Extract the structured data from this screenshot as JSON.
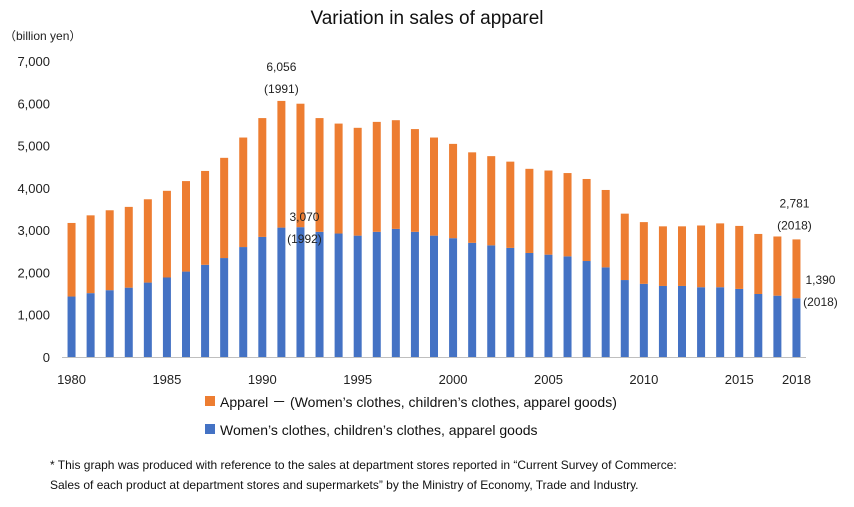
{
  "chart_data": {
    "type": "bar",
    "stacked": true,
    "title": "Variation in sales of apparel",
    "unit_label": "（billion yen）",
    "ylim": [
      0,
      7000
    ],
    "yticks": [
      "0",
      "1,000",
      "2,000",
      "3,000",
      "4,000",
      "5,000",
      "6,000",
      "7,000"
    ],
    "xtick_labels": [
      "1980",
      "1985",
      "1990",
      "1995",
      "2000",
      "2005",
      "2010",
      "2015",
      "2018"
    ],
    "categories": [
      1980,
      1981,
      1982,
      1983,
      1984,
      1985,
      1986,
      1987,
      1988,
      1989,
      1990,
      1991,
      1992,
      1993,
      1994,
      1995,
      1996,
      1997,
      1998,
      1999,
      2000,
      2001,
      2002,
      2003,
      2004,
      2005,
      2006,
      2007,
      2008,
      2009,
      2010,
      2011,
      2012,
      2013,
      2014,
      2015,
      2016,
      2017,
      2018
    ],
    "series": [
      {
        "name": "Women’s clothes, children’s clothes, apparel goods",
        "color": "#4472C4",
        "values": [
          1430,
          1510,
          1580,
          1640,
          1760,
          1880,
          2020,
          2180,
          2340,
          2600,
          2840,
          3060,
          3070,
          2960,
          2920,
          2870,
          2960,
          3030,
          2960,
          2870,
          2810,
          2700,
          2640,
          2580,
          2460,
          2420,
          2380,
          2270,
          2120,
          1820,
          1730,
          1680,
          1680,
          1650,
          1650,
          1610,
          1490,
          1450,
          1390
        ]
      },
      {
        "name": "Apparel － (Women’s clothes, children’s clothes, apparel goods)",
        "color": "#ED7D31",
        "values": [
          1740,
          1840,
          1890,
          1910,
          1970,
          2050,
          2140,
          2220,
          2370,
          2590,
          2810,
          2996,
          2920,
          2690,
          2600,
          2550,
          2600,
          2570,
          2430,
          2320,
          2230,
          2140,
          2110,
          2040,
          1990,
          1990,
          1970,
          1940,
          1830,
          1570,
          1460,
          1410,
          1410,
          1460,
          1510,
          1490,
          1420,
          1400,
          1391
        ]
      }
    ],
    "annotations": [
      {
        "value": "6,056",
        "sub": "(1991)",
        "target": "total-1991"
      },
      {
        "value": "3,070",
        "sub": "(1992)",
        "target": "women-1992"
      },
      {
        "value": "2,781",
        "sub": "(2018)",
        "target": "total-2018"
      },
      {
        "value": "1,390",
        "sub": "(2018)",
        "target": "women-2018"
      }
    ],
    "legend": [
      {
        "label": "Apparel － (Women’s clothes, children’s clothes, apparel goods)",
        "color": "#ED7D31"
      },
      {
        "label": "Women’s clothes, children’s clothes, apparel goods",
        "color": "#4472C4"
      }
    ],
    "legend_position": "bottom",
    "grid": false,
    "note": [
      "* This graph was produced with reference to the sales at department stores reported in “Current Survey of Commerce:",
      "Sales of each product at department stores and supermarkets” by the Ministry of Economy, Trade and Industry."
    ]
  }
}
